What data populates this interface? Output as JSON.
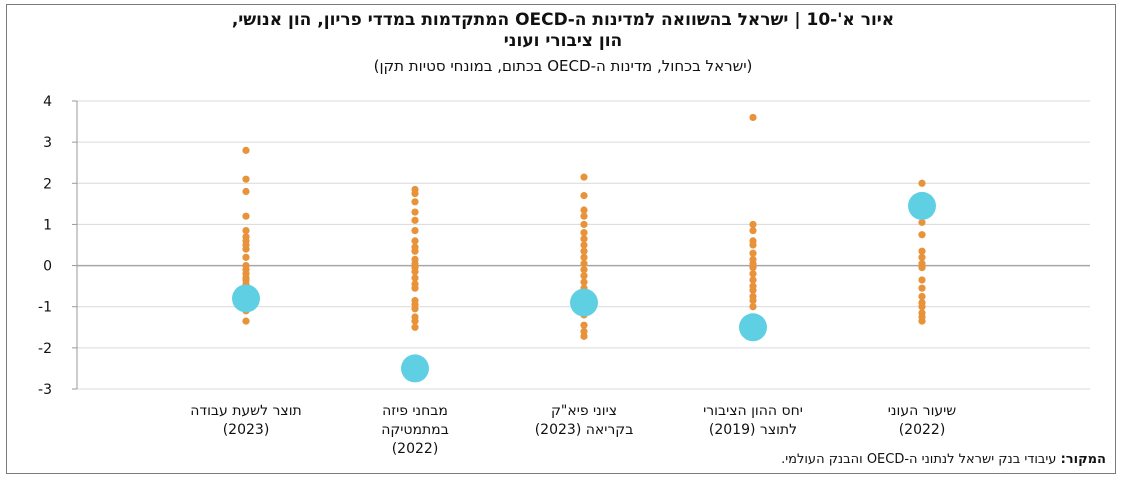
{
  "title_line1": "איור א'-10 | ישראל בהשוואה למדינות ה-OECD המתקדמות במדדי פריון, הון אנושי,",
  "title_line2": "הון ציבורי ועוני",
  "subtitle": "(ישראל בכחול, מדינות ה-OECD בכתום, במונחי סטיות תקן)",
  "source_label": "המקור:",
  "source_text": " עיבודי בנק ישראל לנתוני ה-OECD והבנק העולמי.",
  "categories": [
    {
      "line1": "תוצר לשעת עבודה",
      "line2": "(2023)",
      "line3": ""
    },
    {
      "line1": "מבחני פיזה",
      "line2": "במתמטיקה",
      "line3": "(2022)"
    },
    {
      "line1": "ציוני פיא\"ק",
      "line2": "בקריאה (2023)",
      "line3": ""
    },
    {
      "line1": "יחס ההון הציבורי",
      "line2": "לתוצר (2019)",
      "line3": ""
    },
    {
      "line1": "שיעור העוני",
      "line2": "(2022)",
      "line3": ""
    }
  ],
  "chart_data": {
    "type": "scatter",
    "title": "איור א'-10 | ישראל בהשוואה למדינות ה-OECD המתקדמות במדדי פריון, הון אנושי, הון ציבורי ועוני",
    "subtitle": "(ישראל בכחול, מדינות ה-OECD בכתום, במונחי סטיות תקן)",
    "xlabel": "",
    "ylabel": "",
    "ylim": [
      -3,
      4
    ],
    "yticks": [
      4,
      3,
      2,
      1,
      0,
      -1,
      -2,
      -3
    ],
    "grid": true,
    "legend": "none",
    "colors": {
      "oecd": "#e8923a",
      "israel": "#5fd0e3",
      "grid": "#d9d9d9",
      "zero": "#a6a6a6"
    },
    "categories": [
      "תוצר לשעת עבודה (2023)",
      "מבחני פיזה במתמטיקה (2022)",
      "ציוני פיא\"ק בקריאה (2023)",
      "יחס ההון הציבורי לתוצר (2019)",
      "שיעור העוני (2022)"
    ],
    "series": [
      {
        "values": [
          [
            2.8,
            2.1,
            1.8,
            1.2,
            0.85,
            0.7,
            0.6,
            0.5,
            0.4,
            0.2,
            0.0,
            -0.1,
            -0.2,
            -0.3,
            -0.35,
            -0.45,
            -0.55,
            -0.7,
            -0.8,
            -0.9,
            -1.0,
            -1.1,
            -1.35
          ],
          [
            1.85,
            1.75,
            1.55,
            1.3,
            1.1,
            0.85,
            0.6,
            0.45,
            0.35,
            0.15,
            0.05,
            -0.05,
            -0.15,
            -0.3,
            -0.45,
            -0.55,
            -0.85,
            -0.95,
            -1.05,
            -1.25,
            -1.35,
            -1.5
          ],
          [
            2.15,
            1.7,
            1.35,
            1.2,
            1.0,
            0.8,
            0.65,
            0.5,
            0.35,
            0.2,
            0.05,
            -0.1,
            -0.25,
            -0.4,
            -0.55,
            -0.75,
            -0.95,
            -1.2,
            -1.45,
            -1.6,
            -1.72
          ],
          [
            3.6,
            1.0,
            0.85,
            0.6,
            0.5,
            0.3,
            0.15,
            0.05,
            -0.05,
            -0.2,
            -0.35,
            -0.5,
            -0.6,
            -0.75,
            -0.85,
            -1.0
          ],
          [
            2.0,
            1.7,
            1.3,
            1.05,
            0.75,
            0.35,
            0.2,
            0.05,
            -0.05,
            -0.35,
            -0.55,
            -0.75,
            -0.9,
            -1.0,
            -1.15,
            -1.25,
            -1.35
          ]
        ]
      },
      {
        "values": [
          -0.8,
          -2.5,
          -0.9,
          -1.5,
          1.45
        ]
      }
    ]
  }
}
